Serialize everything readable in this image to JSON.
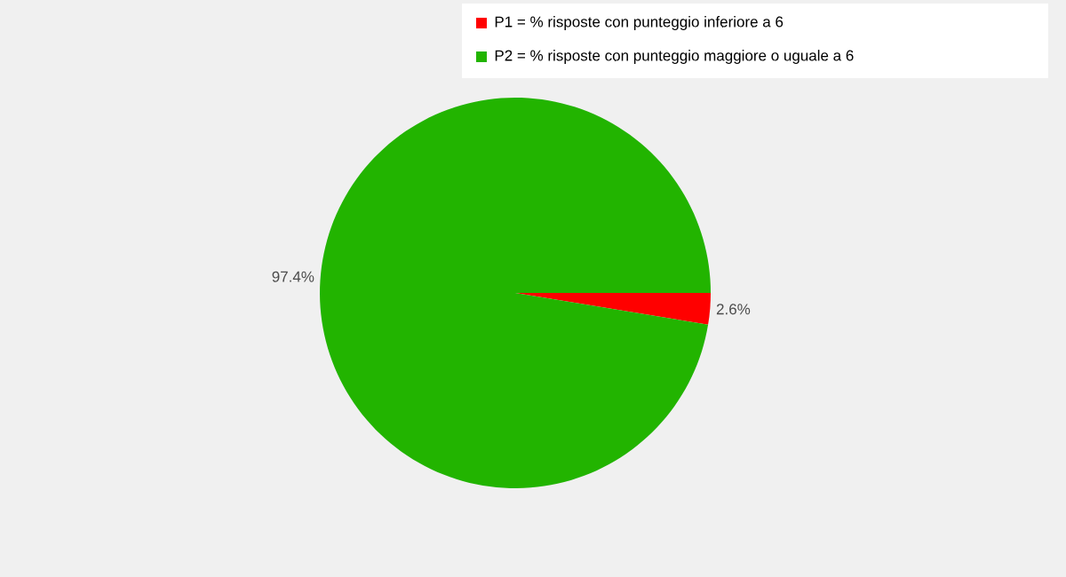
{
  "chart_data": {
    "type": "pie",
    "categories": [
      "P1 = % risposte con punteggio inferiore a 6",
      "P2 = % risposte con punteggio maggiore o uguale a 6"
    ],
    "values": [
      2.6,
      97.4
    ],
    "colors": [
      "#ff0000",
      "#22b400"
    ],
    "value_labels": [
      "2.6%",
      "97.4%"
    ],
    "legend": "top right"
  }
}
